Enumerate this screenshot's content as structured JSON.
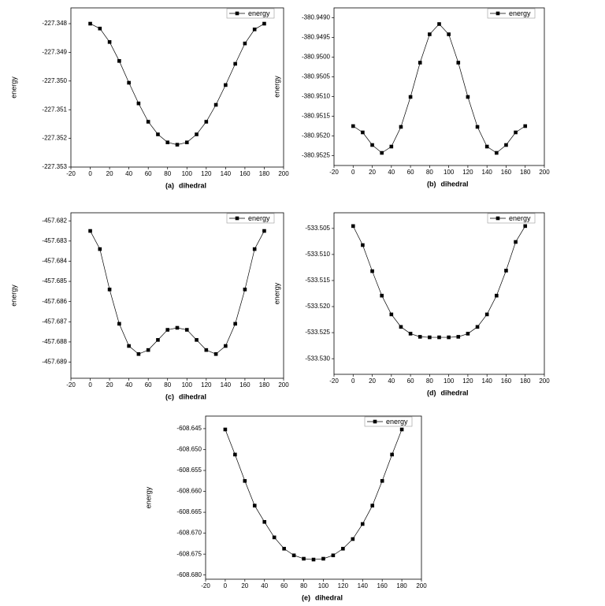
{
  "chart_data": [
    {
      "type": "line",
      "caption": "(a)",
      "xlabel": "dihedral",
      "ylabel": "energy",
      "x": [
        0,
        10,
        20,
        30,
        40,
        50,
        60,
        70,
        80,
        90,
        100,
        110,
        120,
        130,
        140,
        150,
        160,
        170,
        180
      ],
      "series": [
        {
          "name": "energy",
          "color": "#000000",
          "values": [
            -227.348,
            -227.34817,
            -227.34864,
            -227.3493,
            -227.35006,
            -227.35078,
            -227.35142,
            -227.35186,
            -227.35214,
            -227.35222,
            -227.35214,
            -227.35186,
            -227.35142,
            -227.35083,
            -227.35014,
            -227.3494,
            -227.34869,
            -227.3482,
            -227.348
          ]
        }
      ],
      "xlim": [
        -20,
        200
      ],
      "xticks": [
        -20,
        0,
        20,
        40,
        60,
        80,
        100,
        120,
        140,
        160,
        180,
        200
      ],
      "ylim": [
        -227.353,
        -227.34745
      ],
      "yticks": [
        -227.348,
        -227.349,
        {
          "value": -227.35,
          "label": "-227.350"
        },
        -227.351,
        -227.352,
        -227.353
      ],
      "legend": "upper right"
    },
    {
      "type": "line",
      "caption": "(b)",
      "xlabel": "dihedral",
      "ylabel": "energy",
      "x": [
        0,
        10,
        20,
        30,
        40,
        50,
        60,
        70,
        80,
        90,
        100,
        110,
        120,
        130,
        140,
        150,
        160,
        170,
        180
      ],
      "series": [
        {
          "name": "energy",
          "color": "#000000",
          "values": [
            -380.95175,
            -380.95191,
            -380.95223,
            -380.95243,
            -380.95227,
            -380.95177,
            -380.95101,
            -380.95014,
            -380.94942,
            -380.94916,
            -380.94942,
            -380.95014,
            -380.95101,
            -380.95177,
            -380.95227,
            -380.95243,
            -380.95223,
            -380.95191,
            -380.95175
          ]
        }
      ],
      "xlim": [
        -20,
        200
      ],
      "xticks": [
        -20,
        0,
        20,
        40,
        60,
        80,
        100,
        120,
        140,
        160,
        180,
        200
      ],
      "ylim": [
        -380.95275,
        -380.94875
      ],
      "yticks": [
        {
          "value": -380.949,
          "label": "-380.9490"
        },
        -380.9495,
        {
          "value": -380.95,
          "label": "-380.9500"
        },
        -380.9505,
        {
          "value": -380.951,
          "label": "-380.9510"
        },
        -380.9515,
        {
          "value": -380.952,
          "label": "-380.9520"
        },
        -380.9525
      ],
      "legend": "upper right"
    },
    {
      "type": "line",
      "caption": "(c)",
      "xlabel": "dihedral",
      "ylabel": "energy",
      "x": [
        0,
        10,
        20,
        30,
        40,
        50,
        60,
        70,
        80,
        90,
        100,
        110,
        120,
        130,
        140,
        150,
        160,
        170,
        180
      ],
      "series": [
        {
          "name": "energy",
          "color": "#000000",
          "values": [
            -457.6825,
            -457.6834,
            -457.6854,
            -457.6871,
            -457.6882,
            -457.6886,
            -457.6884,
            -457.6879,
            -457.6874,
            -457.6873,
            -457.6874,
            -457.6879,
            -457.6884,
            -457.6886,
            -457.6882,
            -457.6871,
            -457.6854,
            -457.6834,
            -457.6825
          ]
        }
      ],
      "xlim": [
        -20,
        200
      ],
      "xticks": [
        -20,
        0,
        20,
        40,
        60,
        80,
        100,
        120,
        140,
        160,
        180,
        200
      ],
      "ylim": [
        -457.6898,
        -457.6816
      ],
      "yticks": [
        -457.682,
        -457.683,
        -457.684,
        -457.685,
        -457.686,
        -457.687,
        -457.688,
        -457.689
      ],
      "legend": "upper right"
    },
    {
      "type": "line",
      "caption": "(d)",
      "xlabel": "dihedral",
      "ylabel": "energy",
      "x": [
        0,
        10,
        20,
        30,
        40,
        50,
        60,
        70,
        80,
        90,
        100,
        110,
        120,
        130,
        140,
        150,
        160,
        170,
        180
      ],
      "series": [
        {
          "name": "energy",
          "color": "#000000",
          "values": [
            -533.50455,
            -533.5082,
            -533.5132,
            -533.5179,
            -533.5215,
            -533.5239,
            -533.5252,
            -533.5258,
            -533.5259,
            -533.5259,
            -533.5259,
            -533.5258,
            -533.5252,
            -533.5239,
            -533.5215,
            -533.5179,
            -533.5131,
            -533.5076,
            -533.50455
          ]
        }
      ],
      "xlim": [
        -20,
        200
      ],
      "xticks": [
        -20,
        0,
        20,
        40,
        60,
        80,
        100,
        120,
        140,
        160,
        180,
        200
      ],
      "ylim": [
        -533.533,
        -533.502
      ],
      "yticks": [
        -533.505,
        {
          "value": -533.51,
          "label": "-533.510"
        },
        -533.515,
        {
          "value": -533.52,
          "label": "-533.520"
        },
        -533.525,
        {
          "value": -533.53,
          "label": "-533.530"
        }
      ],
      "legend": "upper right"
    },
    {
      "type": "line",
      "caption": "(e)",
      "xlabel": "dihedral",
      "ylabel": "energy",
      "x": [
        0,
        10,
        20,
        30,
        40,
        50,
        60,
        70,
        80,
        90,
        100,
        110,
        120,
        130,
        140,
        150,
        160,
        170,
        180
      ],
      "series": [
        {
          "name": "energy",
          "color": "#000000",
          "values": [
            -608.6452,
            -608.6512,
            -608.6575,
            -608.6634,
            -608.6673,
            -608.671,
            -608.6737,
            -608.6753,
            -608.6761,
            -608.6763,
            -608.6761,
            -608.6753,
            -608.6737,
            -608.6714,
            -608.6678,
            -608.6634,
            -608.6575,
            -608.6512,
            -608.6452
          ]
        }
      ],
      "xlim": [
        -20,
        200
      ],
      "xticks": [
        -20,
        0,
        20,
        40,
        60,
        80,
        100,
        120,
        140,
        160,
        180,
        200
      ],
      "ylim": [
        -608.681,
        -608.642
      ],
      "yticks": [
        -608.645,
        {
          "value": -608.65,
          "label": "-608.650"
        },
        -608.655,
        {
          "value": -608.66,
          "label": "-608.660"
        },
        -608.665,
        {
          "value": -608.67,
          "label": "-608.670"
        },
        -608.675,
        {
          "value": -608.68,
          "label": "-608.680"
        }
      ],
      "legend": "upper right"
    }
  ]
}
